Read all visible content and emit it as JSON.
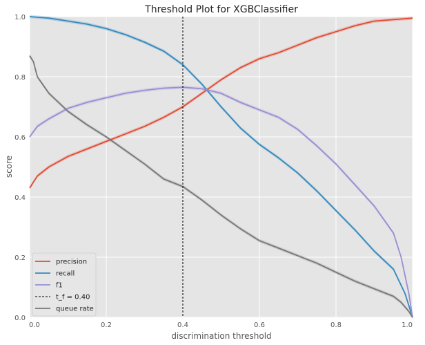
{
  "chart_data": {
    "type": "line",
    "title": "Threshold Plot for XGBClassifier",
    "xlabel": "discrimination threshold",
    "ylabel": "score",
    "xlim": [
      0,
      1
    ],
    "ylim": [
      0,
      1
    ],
    "xticks": [
      "0.0",
      "0.2",
      "0.4",
      "0.6",
      "0.8",
      "1.0"
    ],
    "yticks": [
      "0.0",
      "0.2",
      "0.4",
      "0.6",
      "0.8",
      "1.0"
    ],
    "grid": true,
    "legend_position": "bottom-left",
    "threshold": {
      "value": 0.4,
      "label": "t_f = 0.40"
    },
    "series": [
      {
        "name": "precision",
        "color": "#E24A33",
        "x": [
          0.0,
          0.01,
          0.02,
          0.05,
          0.1,
          0.15,
          0.2,
          0.25,
          0.3,
          0.35,
          0.4,
          0.45,
          0.5,
          0.55,
          0.6,
          0.65,
          0.7,
          0.75,
          0.8,
          0.85,
          0.9,
          0.95,
          1.0
        ],
        "y": [
          0.43,
          0.45,
          0.47,
          0.5,
          0.535,
          0.56,
          0.585,
          0.61,
          0.635,
          0.665,
          0.7,
          0.745,
          0.79,
          0.83,
          0.86,
          0.88,
          0.905,
          0.93,
          0.95,
          0.97,
          0.985,
          0.99,
          0.995
        ]
      },
      {
        "name": "recall",
        "color": "#348ABD",
        "x": [
          0.0,
          0.05,
          0.1,
          0.15,
          0.2,
          0.25,
          0.3,
          0.35,
          0.4,
          0.45,
          0.5,
          0.55,
          0.6,
          0.65,
          0.7,
          0.75,
          0.8,
          0.85,
          0.9,
          0.95,
          0.98,
          1.0
        ],
        "y": [
          1.0,
          0.995,
          0.985,
          0.975,
          0.96,
          0.94,
          0.915,
          0.885,
          0.84,
          0.775,
          0.7,
          0.63,
          0.575,
          0.53,
          0.48,
          0.42,
          0.355,
          0.29,
          0.22,
          0.16,
          0.08,
          0.0
        ]
      },
      {
        "name": "f1",
        "color": "#988ED5",
        "x": [
          0.0,
          0.02,
          0.05,
          0.1,
          0.15,
          0.2,
          0.25,
          0.3,
          0.35,
          0.4,
          0.45,
          0.5,
          0.55,
          0.6,
          0.65,
          0.7,
          0.75,
          0.8,
          0.85,
          0.9,
          0.95,
          0.97,
          0.99,
          1.0
        ],
        "y": [
          0.6,
          0.635,
          0.66,
          0.695,
          0.715,
          0.73,
          0.745,
          0.755,
          0.762,
          0.765,
          0.76,
          0.745,
          0.715,
          0.69,
          0.665,
          0.625,
          0.57,
          0.51,
          0.44,
          0.37,
          0.28,
          0.2,
          0.08,
          0.0
        ]
      },
      {
        "name": "queue rate",
        "color": "#777777",
        "x": [
          0.0,
          0.01,
          0.02,
          0.05,
          0.1,
          0.15,
          0.2,
          0.25,
          0.3,
          0.35,
          0.4,
          0.45,
          0.5,
          0.55,
          0.6,
          0.65,
          0.7,
          0.75,
          0.8,
          0.85,
          0.9,
          0.95,
          0.97,
          0.99,
          1.0
        ],
        "y": [
          0.87,
          0.85,
          0.8,
          0.745,
          0.685,
          0.64,
          0.6,
          0.555,
          0.51,
          0.46,
          0.435,
          0.39,
          0.34,
          0.295,
          0.255,
          0.23,
          0.205,
          0.18,
          0.15,
          0.12,
          0.095,
          0.07,
          0.05,
          0.02,
          0.0
        ]
      }
    ],
    "legend": [
      {
        "label": "precision",
        "color": "#E24A33",
        "style": "solid"
      },
      {
        "label": "recall",
        "color": "#348ABD",
        "style": "solid"
      },
      {
        "label": "f1",
        "color": "#988ED5",
        "style": "solid"
      },
      {
        "label": "t_f = 0.40",
        "color": "#000000",
        "style": "dashed"
      },
      {
        "label": "queue rate",
        "color": "#777777",
        "style": "solid"
      }
    ],
    "colors": {
      "plot_background": "#E5E5E5",
      "grid": "#FFFFFF"
    }
  }
}
